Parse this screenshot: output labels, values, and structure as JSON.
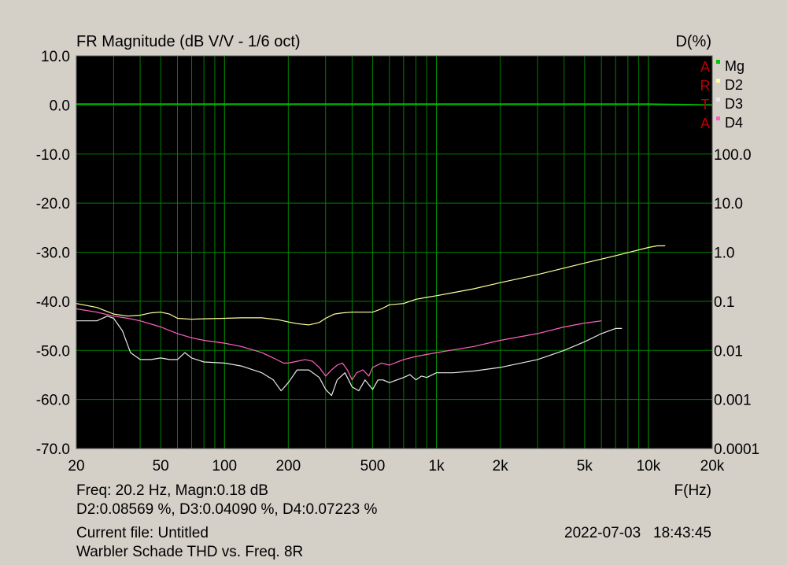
{
  "chart_data": {
    "type": "line",
    "title": "FR Magnitude (dB V/V - 1/6 oct)",
    "right_axis_title": "D(%)",
    "xlabel": "F(Hz)",
    "x_scale": "log",
    "xlim": [
      20,
      20000
    ],
    "x_ticks": [
      20,
      50,
      100,
      200,
      500,
      1000,
      2000,
      5000,
      10000,
      20000
    ],
    "x_tick_labels": [
      "20",
      "50",
      "100",
      "200",
      "500",
      "1k",
      "2k",
      "5k",
      "10k",
      "20k"
    ],
    "ylim": [
      -70,
      10
    ],
    "y_ticks": [
      10,
      0,
      -10,
      -20,
      -30,
      -40,
      -50,
      -60,
      -70
    ],
    "y_tick_labels": [
      "10.0",
      "0.0",
      "-10.0",
      "-20.0",
      "-30.0",
      "-40.0",
      "-50.0",
      "-60.0",
      "-70.0"
    ],
    "y2_scale": "log",
    "y2lim": [
      0.0001,
      100
    ],
    "y2_ticks": [
      100,
      10,
      1,
      0.1,
      0.01,
      0.001,
      0.0001
    ],
    "y2_tick_labels": [
      "100.0",
      "10.0",
      "1.0",
      "0.1",
      "0.01",
      "0.001",
      "0.0001"
    ],
    "grid": true,
    "legend_placement": "top-right",
    "background": "#000000",
    "grid_color": "#008000",
    "series": [
      {
        "name": "Mg",
        "color": "#00c800",
        "axis": "left",
        "x": [
          20,
          30,
          50,
          100,
          200,
          500,
          1000,
          2000,
          5000,
          10000,
          15000,
          20000
        ],
        "y": [
          0.2,
          0.2,
          0.2,
          0.2,
          0.2,
          0.2,
          0.2,
          0.2,
          0.2,
          0.2,
          0.1,
          0.0
        ]
      },
      {
        "name": "D2",
        "color": "#ffffa0",
        "axis": "right",
        "x": [
          20,
          25,
          30,
          35,
          40,
          45,
          50,
          55,
          60,
          70,
          80,
          100,
          120,
          150,
          180,
          200,
          220,
          250,
          280,
          300,
          330,
          360,
          400,
          450,
          500,
          550,
          600,
          700,
          800,
          900,
          1000,
          1200,
          1500,
          2000,
          3000,
          5000,
          7000,
          10000,
          11000,
          12000
        ],
        "y": [
          0.09,
          0.075,
          0.055,
          0.05,
          0.052,
          0.058,
          0.06,
          0.055,
          0.045,
          0.043,
          0.044,
          0.045,
          0.046,
          0.046,
          0.042,
          0.038,
          0.035,
          0.033,
          0.037,
          0.045,
          0.055,
          0.058,
          0.06,
          0.06,
          0.06,
          0.07,
          0.085,
          0.09,
          0.11,
          0.12,
          0.13,
          0.15,
          0.18,
          0.24,
          0.35,
          0.6,
          0.85,
          1.25,
          1.35,
          1.35
        ]
      },
      {
        "name": "D3",
        "color": "#e8e8e8",
        "axis": "right",
        "x": [
          20,
          25,
          28,
          30,
          33,
          36,
          40,
          45,
          50,
          55,
          60,
          65,
          70,
          80,
          100,
          120,
          150,
          170,
          185,
          200,
          220,
          250,
          280,
          300,
          320,
          340,
          370,
          400,
          430,
          460,
          500,
          530,
          560,
          600,
          650,
          700,
          750,
          800,
          850,
          900,
          1000,
          1200,
          1500,
          2000,
          3000,
          4000,
          5000,
          6000,
          7000,
          7500
        ],
        "y": [
          0.04,
          0.04,
          0.05,
          0.045,
          0.025,
          0.009,
          0.0065,
          0.0065,
          0.007,
          0.0065,
          0.0065,
          0.009,
          0.007,
          0.0058,
          0.0055,
          0.0048,
          0.0035,
          0.0025,
          0.0015,
          0.0022,
          0.004,
          0.004,
          0.0028,
          0.0016,
          0.0012,
          0.0025,
          0.0035,
          0.0018,
          0.0015,
          0.0025,
          0.0016,
          0.0025,
          0.0025,
          0.0022,
          0.0025,
          0.0028,
          0.0032,
          0.0025,
          0.003,
          0.0028,
          0.0035,
          0.0035,
          0.0038,
          0.0045,
          0.0065,
          0.01,
          0.015,
          0.022,
          0.028,
          0.028
        ]
      },
      {
        "name": "D4",
        "color": "#ff60c0",
        "axis": "right",
        "x": [
          20,
          25,
          30,
          35,
          40,
          50,
          60,
          70,
          80,
          100,
          120,
          150,
          170,
          190,
          200,
          220,
          240,
          260,
          280,
          300,
          320,
          340,
          360,
          380,
          400,
          420,
          450,
          480,
          500,
          550,
          600,
          700,
          800,
          1000,
          1500,
          2000,
          3000,
          4000,
          5000,
          6000
        ],
        "y": [
          0.07,
          0.06,
          0.05,
          0.045,
          0.04,
          0.03,
          0.022,
          0.018,
          0.016,
          0.014,
          0.012,
          0.009,
          0.007,
          0.0055,
          0.0055,
          0.006,
          0.0065,
          0.006,
          0.0045,
          0.003,
          0.004,
          0.005,
          0.0055,
          0.004,
          0.0025,
          0.0035,
          0.004,
          0.003,
          0.0045,
          0.0055,
          0.005,
          0.0065,
          0.0075,
          0.009,
          0.012,
          0.016,
          0.022,
          0.03,
          0.036,
          0.04
        ]
      }
    ],
    "arta_letters": [
      "A",
      "R",
      "T",
      "A"
    ]
  },
  "cursor_readout": {
    "line1": "Freq: 20.2 Hz, Magn:0.18 dB",
    "line2": "D2:0.08569 %, D3:0.04090 %, D4:0.07223 %"
  },
  "footer": {
    "file": "Current file: Untitled",
    "description": "Warbler Schade THD vs. Freq. 8R",
    "timestamp": "2022-07-03   18:43:45"
  }
}
